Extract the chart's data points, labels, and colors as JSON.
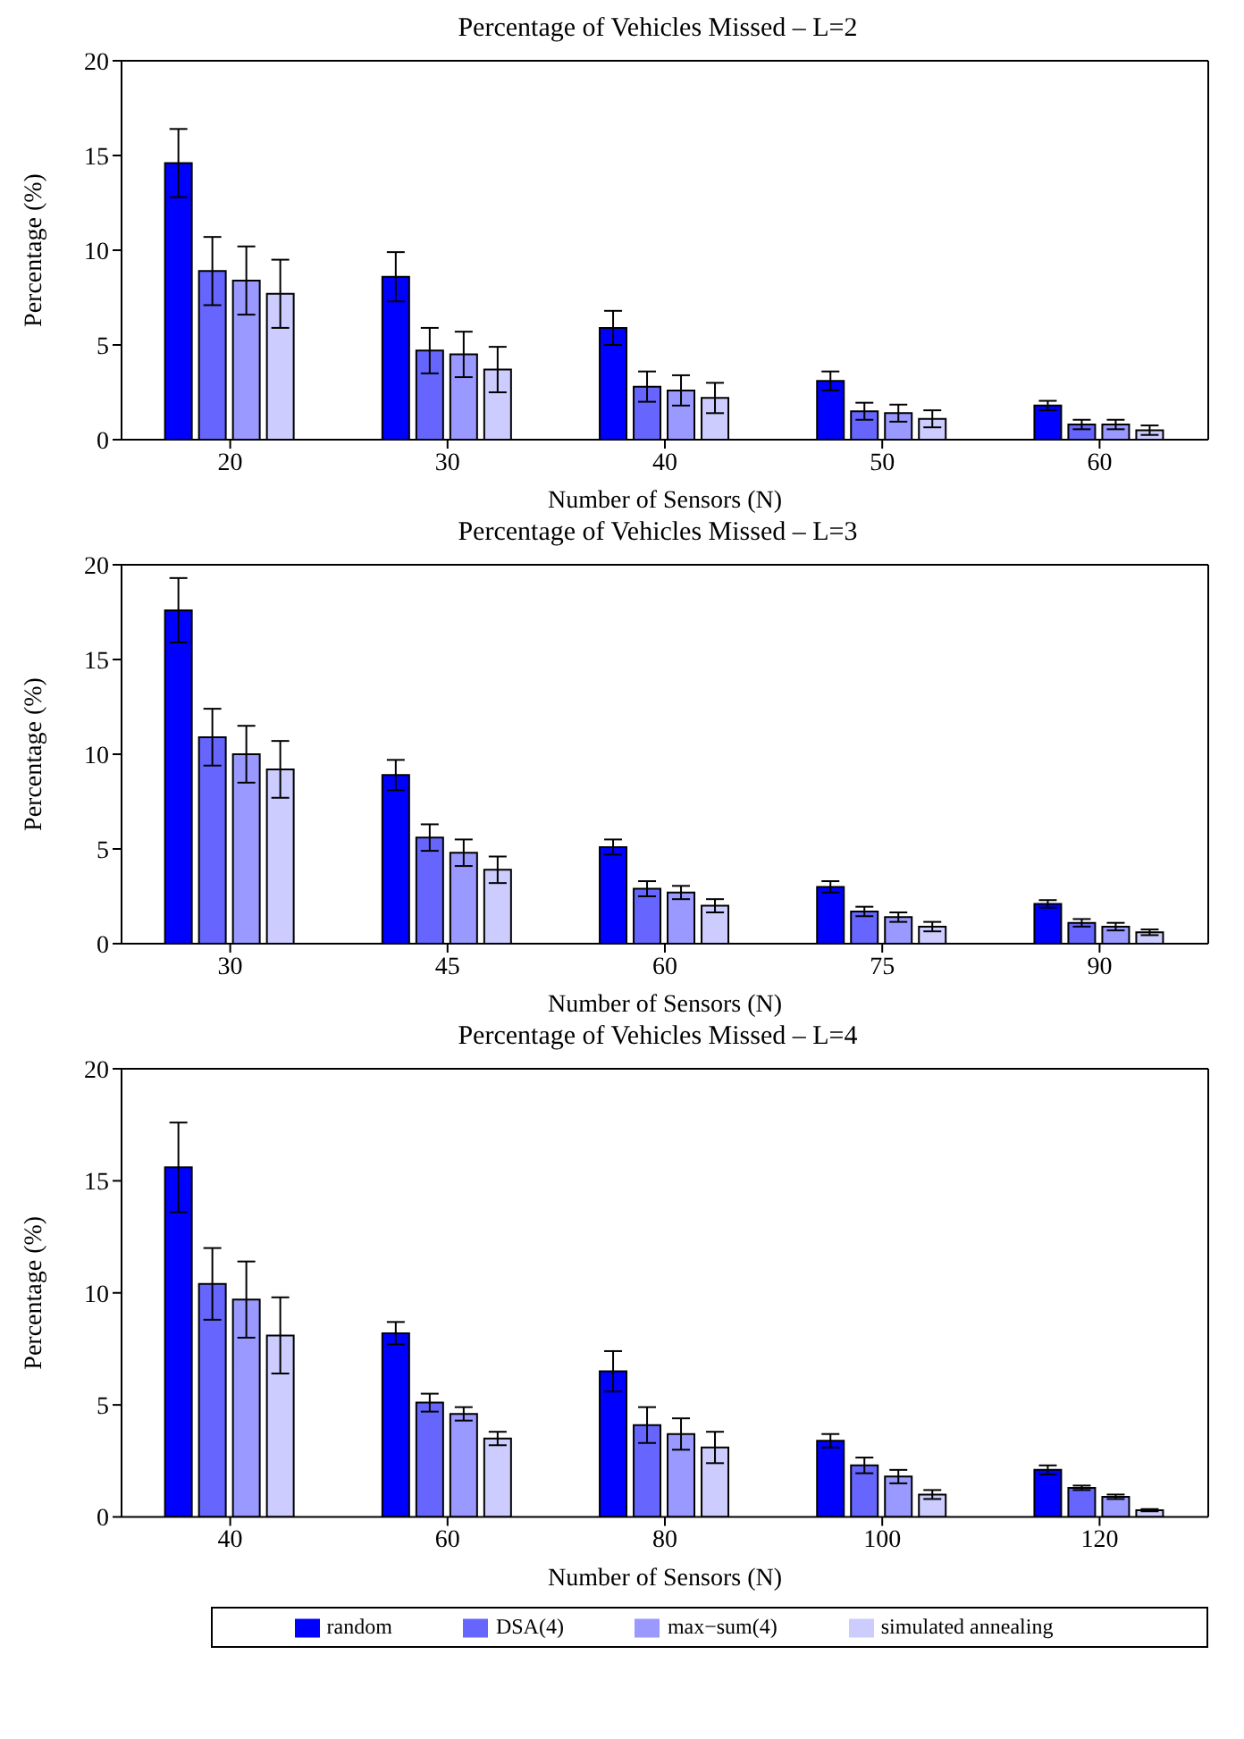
{
  "chart_data": [
    {
      "type": "bar",
      "title": "Percentage of Vehicles Missed – L=2",
      "xlabel": "Number of Sensors (N)",
      "ylabel": "Percentage (%)",
      "categories": [
        "20",
        "30",
        "40",
        "50",
        "60"
      ],
      "ylim": [
        0,
        20
      ],
      "yticks": [
        0,
        5,
        10,
        15,
        20
      ],
      "grid": false,
      "legend": false,
      "series": [
        {
          "color": "#0000ff",
          "values": [
            14.6,
            8.6,
            5.9,
            3.1,
            1.8
          ],
          "errors": [
            1.8,
            1.3,
            0.9,
            0.5,
            0.25
          ]
        },
        {
          "color": "#6666ff",
          "values": [
            8.9,
            4.7,
            2.8,
            1.5,
            0.8
          ],
          "errors": [
            1.8,
            1.2,
            0.8,
            0.45,
            0.25
          ]
        },
        {
          "color": "#9999ff",
          "values": [
            8.4,
            4.5,
            2.6,
            1.4,
            0.8
          ],
          "errors": [
            1.8,
            1.2,
            0.8,
            0.45,
            0.25
          ]
        },
        {
          "color": "#ccccff",
          "values": [
            7.7,
            3.7,
            2.2,
            1.1,
            0.5
          ],
          "errors": [
            1.8,
            1.2,
            0.8,
            0.45,
            0.25
          ]
        }
      ]
    },
    {
      "type": "bar",
      "title": "Percentage of Vehicles Missed – L=3",
      "xlabel": "Number of Sensors (N)",
      "ylabel": "Percentage (%)",
      "categories": [
        "30",
        "45",
        "60",
        "75",
        "90"
      ],
      "ylim": [
        0,
        20
      ],
      "yticks": [
        0,
        5,
        10,
        15,
        20
      ],
      "grid": false,
      "legend": false,
      "series": [
        {
          "color": "#0000ff",
          "values": [
            17.6,
            8.9,
            5.1,
            3.0,
            2.1
          ],
          "errors": [
            1.7,
            0.8,
            0.4,
            0.3,
            0.2
          ]
        },
        {
          "color": "#6666ff",
          "values": [
            10.9,
            5.6,
            2.9,
            1.7,
            1.1
          ],
          "errors": [
            1.5,
            0.7,
            0.4,
            0.25,
            0.2
          ]
        },
        {
          "color": "#9999ff",
          "values": [
            10.0,
            4.8,
            2.7,
            1.4,
            0.9
          ],
          "errors": [
            1.5,
            0.7,
            0.35,
            0.25,
            0.2
          ]
        },
        {
          "color": "#ccccff",
          "values": [
            9.2,
            3.9,
            2.0,
            0.9,
            0.6
          ],
          "errors": [
            1.5,
            0.7,
            0.35,
            0.25,
            0.15
          ]
        }
      ]
    },
    {
      "type": "bar",
      "title": "Percentage of Vehicles Missed – L=4",
      "xlabel": "Number of Sensors (N)",
      "ylabel": "Percentage (%)",
      "categories": [
        "40",
        "60",
        "80",
        "100",
        "120"
      ],
      "ylim": [
        0,
        20
      ],
      "yticks": [
        0,
        5,
        10,
        15,
        20
      ],
      "grid": false,
      "legend": "bottom",
      "series": [
        {
          "name": "random",
          "color": "#0000ff",
          "values": [
            15.6,
            8.2,
            6.5,
            3.4,
            2.1
          ],
          "errors": [
            2.0,
            0.5,
            0.9,
            0.3,
            0.2
          ]
        },
        {
          "name": "DSA(4)",
          "color": "#6666ff",
          "values": [
            10.4,
            5.1,
            4.1,
            2.3,
            1.3
          ],
          "errors": [
            1.6,
            0.4,
            0.8,
            0.35,
            0.1
          ]
        },
        {
          "name": "max−sum(4)",
          "color": "#9999ff",
          "values": [
            9.7,
            4.6,
            3.7,
            1.8,
            0.9
          ],
          "errors": [
            1.7,
            0.3,
            0.7,
            0.3,
            0.1
          ]
        },
        {
          "name": "simulated annealing",
          "color": "#ccccff",
          "values": [
            8.1,
            3.5,
            3.1,
            1.0,
            0.3
          ],
          "errors": [
            1.7,
            0.3,
            0.7,
            0.2,
            0.05
          ]
        }
      ]
    }
  ]
}
